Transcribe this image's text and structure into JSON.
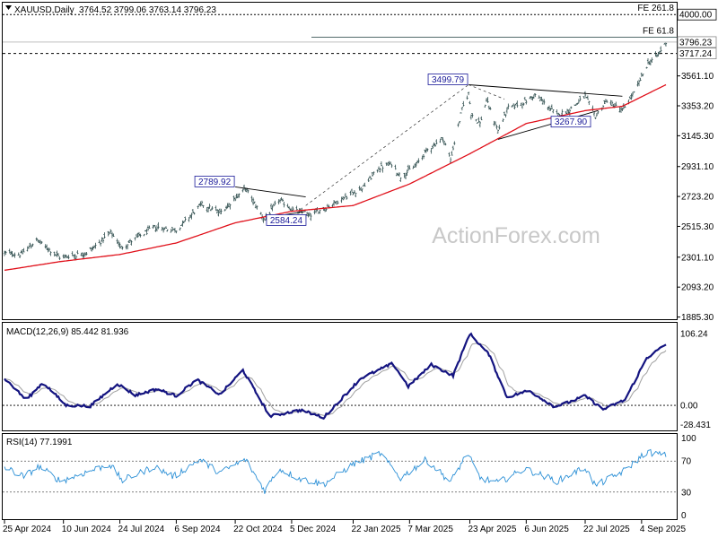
{
  "chart_data": {
    "type": "candlestick",
    "symbol_line": "XAUUSD,Daily",
    "ohlc_line": "3764.52 3799.06 3763.14 3796.23",
    "watermark": "ActionForex.com",
    "price_axis": {
      "ticks": [
        "3561.10",
        "3353.20",
        "3145.30",
        "2931.10",
        "2723.20",
        "2515.30",
        "2301.10",
        "2093.20",
        "1885.30"
      ],
      "tick_values": [
        3561.1,
        3353.2,
        3145.3,
        2931.1,
        2723.2,
        2515.3,
        2301.1,
        2093.2,
        1885.3
      ],
      "range": [
        1870,
        4070
      ]
    },
    "time_axis": {
      "labels": [
        "25 Apr 2024",
        "10 Jun 2024",
        "24 Jul 2024",
        "6 Sep 2024",
        "22 Oct 2024",
        "5 Dec 2024",
        "22 Jan 2025",
        "7 Mar 2025",
        "23 Apr 2025",
        "6 Jun 2025",
        "22 Jul 2025",
        "4 Sep 2025"
      ],
      "range": [
        "2024-04-25",
        "2025-09-23"
      ]
    },
    "price_labels": [
      {
        "text": "4000.00",
        "value": 4000.0,
        "style": "dark"
      },
      {
        "text": "3796.23",
        "value": 3796.23,
        "style": "light"
      },
      {
        "text": "3717.24",
        "value": 3717.24,
        "style": "light"
      }
    ],
    "fib_levels": [
      {
        "label": "FE 261.8",
        "value": 4000.0
      },
      {
        "label": "FE 61.8",
        "value": 3830.0
      }
    ],
    "dashed_level": 3717.24,
    "annotations": [
      {
        "text": "2789.92",
        "date": "2024-10-22",
        "value": 2789.92
      },
      {
        "text": "2584.24",
        "date": "2024-11-21",
        "value": 2584.24
      },
      {
        "text": "3499.79",
        "date": "2025-04-22",
        "value": 3499.79
      },
      {
        "text": "3267.90",
        "date": "2025-07-01",
        "value": 3267.9
      }
    ],
    "trendlines": [
      {
        "from": {
          "date": "2024-10-22",
          "value": 2789.92
        },
        "to": {
          "date": "2024-12-16",
          "value": 2720.0
        }
      },
      {
        "from": {
          "date": "2024-11-21",
          "value": 2584.24
        },
        "to": {
          "date": "2024-12-16",
          "value": 2620.0
        }
      },
      {
        "from": {
          "date": "2025-04-22",
          "value": 3499.79
        },
        "to": {
          "date": "2025-08-20",
          "value": 3420.0
        }
      },
      {
        "from": {
          "date": "2025-05-15",
          "value": 3120.0
        },
        "to": {
          "date": "2025-08-01",
          "value": 3320.0
        }
      }
    ],
    "dashed_trend": [
      {
        "from": {
          "date": "2024-12-16",
          "value": 2660.0
        },
        "to": {
          "date": "2025-04-22",
          "value": 3499.79
        }
      },
      {
        "from": {
          "date": "2025-04-22",
          "value": 3499.79
        },
        "to": {
          "date": "2025-05-20",
          "value": 3400.0
        }
      }
    ],
    "price_anchors": [
      {
        "d": "2024-04-25",
        "v": 2330
      },
      {
        "d": "2024-05-08",
        "v": 2320
      },
      {
        "d": "2024-05-20",
        "v": 2420
      },
      {
        "d": "2024-06-07",
        "v": 2300
      },
      {
        "d": "2024-06-28",
        "v": 2330
      },
      {
        "d": "2024-07-17",
        "v": 2470
      },
      {
        "d": "2024-07-25",
        "v": 2370
      },
      {
        "d": "2024-08-20",
        "v": 2510
      },
      {
        "d": "2024-09-06",
        "v": 2490
      },
      {
        "d": "2024-09-26",
        "v": 2670
      },
      {
        "d": "2024-10-10",
        "v": 2610
      },
      {
        "d": "2024-10-30",
        "v": 2780
      },
      {
        "d": "2024-11-14",
        "v": 2560
      },
      {
        "d": "2024-11-25",
        "v": 2700
      },
      {
        "d": "2024-12-06",
        "v": 2630
      },
      {
        "d": "2024-12-19",
        "v": 2590
      },
      {
        "d": "2025-01-10",
        "v": 2690
      },
      {
        "d": "2025-01-30",
        "v": 2790
      },
      {
        "d": "2025-02-11",
        "v": 2920
      },
      {
        "d": "2025-02-21",
        "v": 2950
      },
      {
        "d": "2025-02-28",
        "v": 2860
      },
      {
        "d": "2025-03-12",
        "v": 2940
      },
      {
        "d": "2025-03-20",
        "v": 3040
      },
      {
        "d": "2025-04-02",
        "v": 3130
      },
      {
        "d": "2025-04-08",
        "v": 2980
      },
      {
        "d": "2025-04-17",
        "v": 3330
      },
      {
        "d": "2025-04-22",
        "v": 3440
      },
      {
        "d": "2025-04-24",
        "v": 3300
      },
      {
        "d": "2025-05-01",
        "v": 3230
      },
      {
        "d": "2025-05-06",
        "v": 3390
      },
      {
        "d": "2025-05-15",
        "v": 3180
      },
      {
        "d": "2025-05-23",
        "v": 3340
      },
      {
        "d": "2025-06-05",
        "v": 3380
      },
      {
        "d": "2025-06-13",
        "v": 3430
      },
      {
        "d": "2025-06-30",
        "v": 3290
      },
      {
        "d": "2025-07-09",
        "v": 3320
      },
      {
        "d": "2025-07-22",
        "v": 3420
      },
      {
        "d": "2025-07-30",
        "v": 3280
      },
      {
        "d": "2025-08-08",
        "v": 3390
      },
      {
        "d": "2025-08-20",
        "v": 3320
      },
      {
        "d": "2025-08-29",
        "v": 3440
      },
      {
        "d": "2025-09-09",
        "v": 3650
      },
      {
        "d": "2025-09-16",
        "v": 3700
      },
      {
        "d": "2025-09-23",
        "v": 3796
      }
    ],
    "ma_anchors": [
      {
        "d": "2024-04-25",
        "v": 2210
      },
      {
        "d": "2024-06-07",
        "v": 2270
      },
      {
        "d": "2024-07-24",
        "v": 2320
      },
      {
        "d": "2024-09-06",
        "v": 2400
      },
      {
        "d": "2024-10-22",
        "v": 2540
      },
      {
        "d": "2024-12-05",
        "v": 2620
      },
      {
        "d": "2025-01-22",
        "v": 2660
      },
      {
        "d": "2025-03-07",
        "v": 2810
      },
      {
        "d": "2025-04-23",
        "v": 3020
      },
      {
        "d": "2025-06-06",
        "v": 3230
      },
      {
        "d": "2025-07-22",
        "v": 3320
      },
      {
        "d": "2025-08-20",
        "v": 3350
      },
      {
        "d": "2025-09-23",
        "v": 3500
      }
    ],
    "macd": {
      "title": "MACD(12,26,9) 85.442 81.936",
      "ticks": [
        "106.24",
        "0.00",
        "-28.431"
      ],
      "tick_values": [
        106.24,
        0.0,
        -28.431
      ],
      "range": [
        -37,
        122
      ],
      "zero_line": 0,
      "anchors": [
        {
          "d": "2024-04-25",
          "v": 40
        },
        {
          "d": "2024-05-12",
          "v": 8
        },
        {
          "d": "2024-05-25",
          "v": 34
        },
        {
          "d": "2024-06-12",
          "v": 0
        },
        {
          "d": "2024-07-01",
          "v": -1
        },
        {
          "d": "2024-07-22",
          "v": 32
        },
        {
          "d": "2024-08-05",
          "v": 15
        },
        {
          "d": "2024-08-22",
          "v": 24
        },
        {
          "d": "2024-09-06",
          "v": 14
        },
        {
          "d": "2024-09-22",
          "v": 38
        },
        {
          "d": "2024-10-10",
          "v": 16
        },
        {
          "d": "2024-10-28",
          "v": 52
        },
        {
          "d": "2024-11-18",
          "v": -16
        },
        {
          "d": "2024-12-12",
          "v": -7
        },
        {
          "d": "2024-12-30",
          "v": -18
        },
        {
          "d": "2025-01-28",
          "v": 40
        },
        {
          "d": "2025-02-22",
          "v": 62
        },
        {
          "d": "2025-03-06",
          "v": 28
        },
        {
          "d": "2025-03-24",
          "v": 60
        },
        {
          "d": "2025-04-10",
          "v": 44
        },
        {
          "d": "2025-04-23",
          "v": 106
        },
        {
          "d": "2025-05-08",
          "v": 75
        },
        {
          "d": "2025-05-22",
          "v": 12
        },
        {
          "d": "2025-06-08",
          "v": 22
        },
        {
          "d": "2025-06-28",
          "v": -2
        },
        {
          "d": "2025-07-10",
          "v": 5
        },
        {
          "d": "2025-07-22",
          "v": 14
        },
        {
          "d": "2025-08-05",
          "v": -6
        },
        {
          "d": "2025-08-22",
          "v": 8
        },
        {
          "d": "2025-09-08",
          "v": 70
        },
        {
          "d": "2025-09-23",
          "v": 90
        }
      ]
    },
    "rsi": {
      "title": "RSI(14) 77.1991",
      "ticks": [
        "100",
        "70",
        "30",
        "0"
      ],
      "tick_values": [
        100,
        70,
        30,
        0
      ],
      "range": [
        -5,
        105
      ],
      "levels": [
        70,
        30
      ],
      "anchors": [
        {
          "d": "2024-04-25",
          "v": 62
        },
        {
          "d": "2024-05-10",
          "v": 50
        },
        {
          "d": "2024-05-22",
          "v": 63
        },
        {
          "d": "2024-06-08",
          "v": 44
        },
        {
          "d": "2024-06-25",
          "v": 54
        },
        {
          "d": "2024-07-16",
          "v": 66
        },
        {
          "d": "2024-07-26",
          "v": 45
        },
        {
          "d": "2024-08-20",
          "v": 63
        },
        {
          "d": "2024-09-04",
          "v": 50
        },
        {
          "d": "2024-09-24",
          "v": 72
        },
        {
          "d": "2024-10-10",
          "v": 55
        },
        {
          "d": "2024-10-30",
          "v": 72
        },
        {
          "d": "2024-11-14",
          "v": 32
        },
        {
          "d": "2024-11-25",
          "v": 60
        },
        {
          "d": "2024-12-12",
          "v": 47
        },
        {
          "d": "2024-12-30",
          "v": 40
        },
        {
          "d": "2025-01-22",
          "v": 66
        },
        {
          "d": "2025-02-12",
          "v": 80
        },
        {
          "d": "2025-02-28",
          "v": 48
        },
        {
          "d": "2025-03-20",
          "v": 72
        },
        {
          "d": "2025-04-08",
          "v": 43
        },
        {
          "d": "2025-04-21",
          "v": 80
        },
        {
          "d": "2025-05-01",
          "v": 48
        },
        {
          "d": "2025-05-15",
          "v": 42
        },
        {
          "d": "2025-06-05",
          "v": 60
        },
        {
          "d": "2025-06-30",
          "v": 44
        },
        {
          "d": "2025-07-22",
          "v": 62
        },
        {
          "d": "2025-07-30",
          "v": 38
        },
        {
          "d": "2025-08-22",
          "v": 58
        },
        {
          "d": "2025-09-08",
          "v": 82
        },
        {
          "d": "2025-09-23",
          "v": 77
        }
      ]
    }
  }
}
